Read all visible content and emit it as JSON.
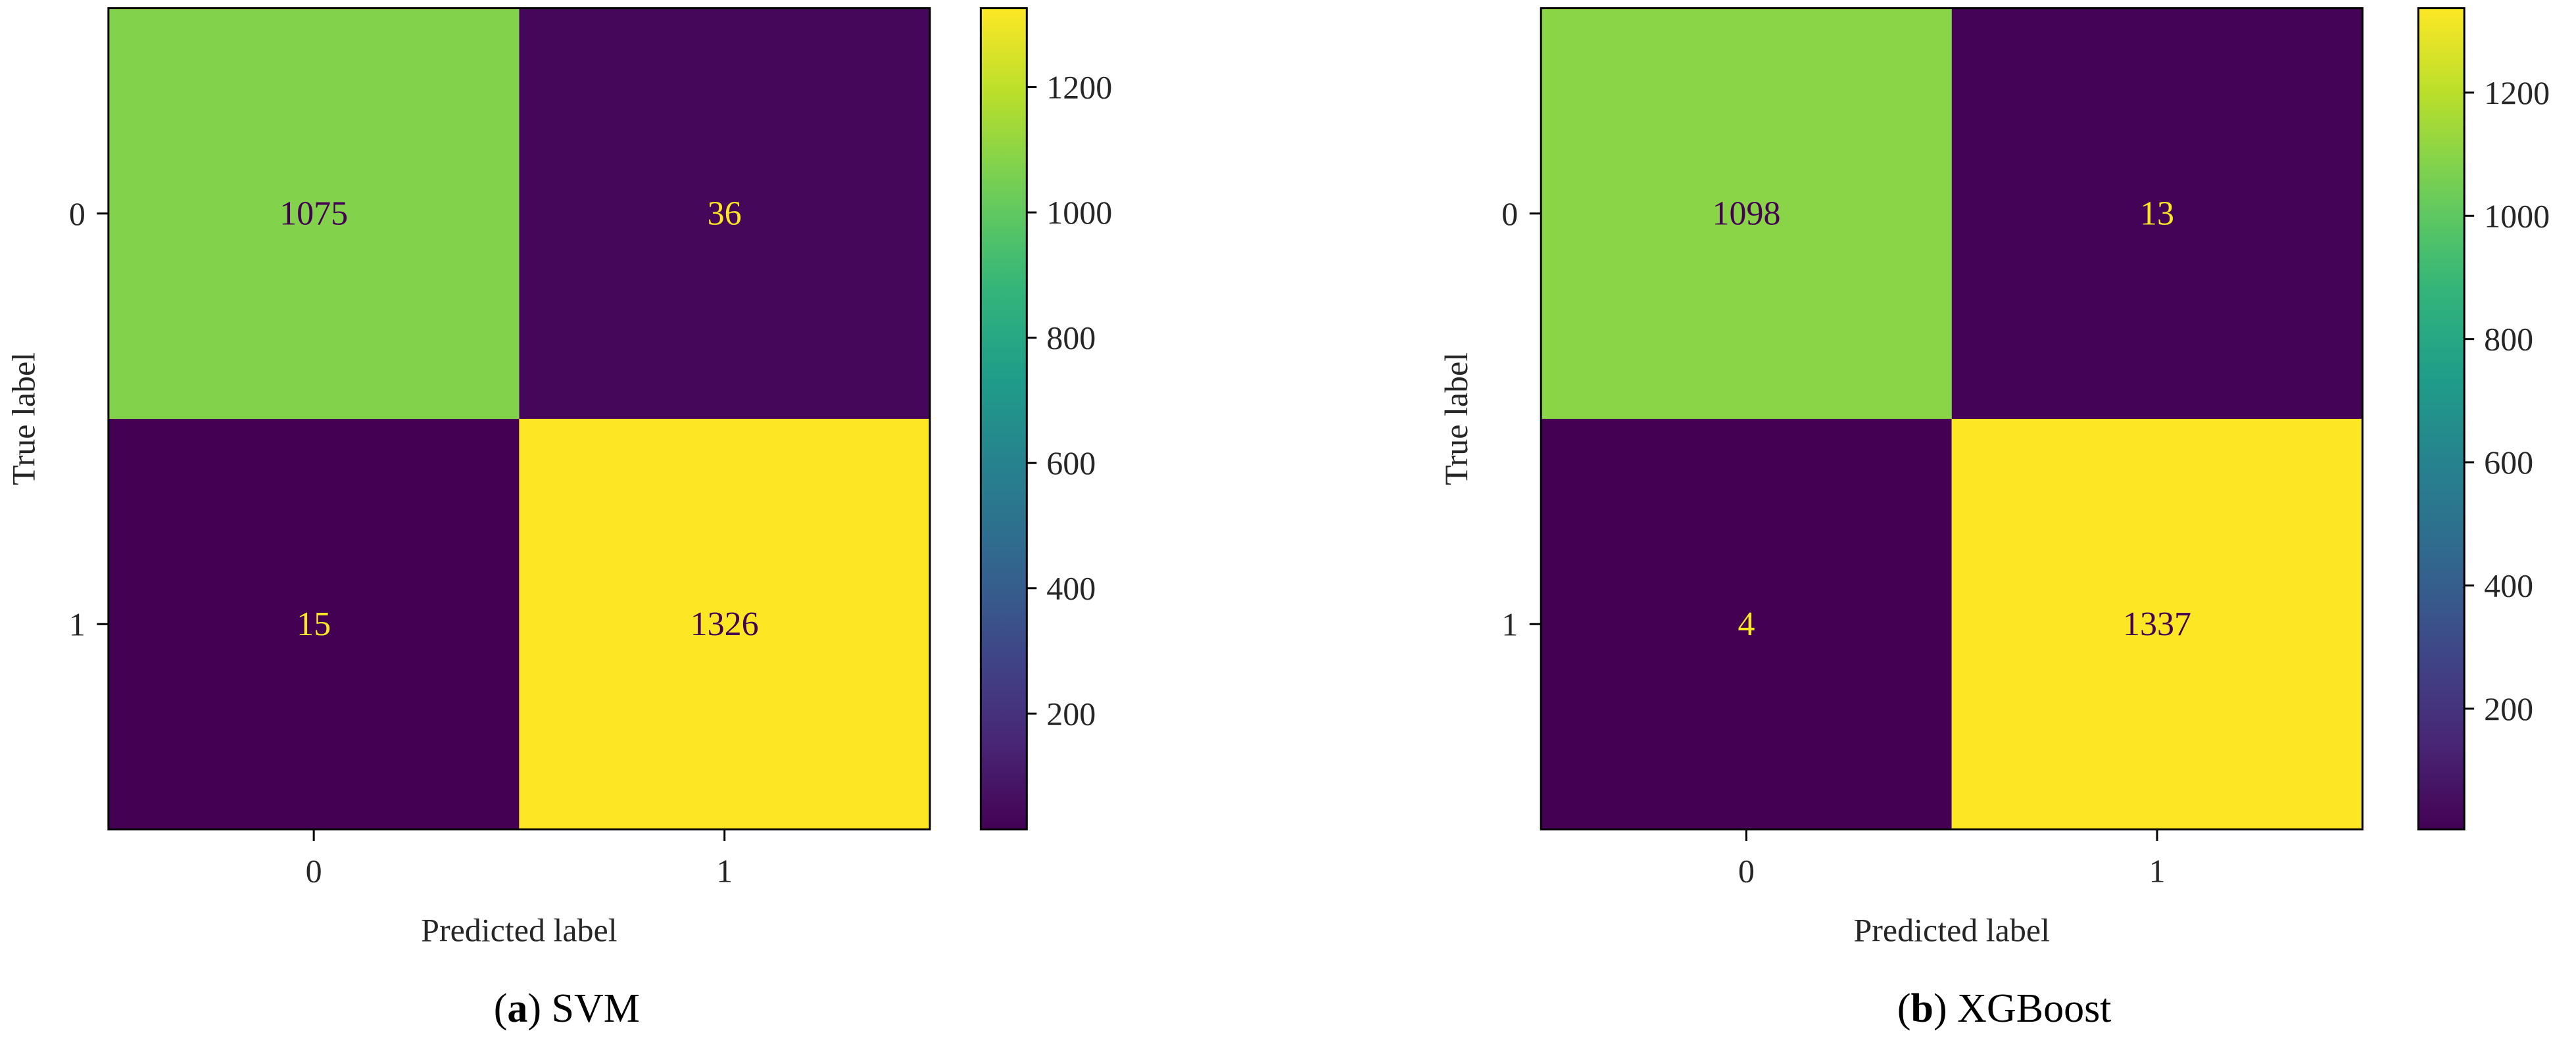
{
  "colors": {
    "viridis": [
      "#440154",
      "#482878",
      "#3e4989",
      "#31688e",
      "#26828e",
      "#1f9e89",
      "#35b779",
      "#6ece58",
      "#b5de2b",
      "#fde725"
    ],
    "text_on_dark": "#fde725",
    "text_on_light": "#440154",
    "axis": "#000000"
  },
  "chart_data": [
    {
      "type": "heatmap",
      "title": "",
      "xlabel": "Predicted label",
      "ylabel": "True label",
      "x_categories": [
        "0",
        "1"
      ],
      "y_categories": [
        "0",
        "1"
      ],
      "matrix": [
        [
          1075,
          36
        ],
        [
          15,
          1326
        ]
      ],
      "colorbar": {
        "min": 15,
        "max": 1326,
        "ticks": [
          "200",
          "400",
          "600",
          "800",
          "1000",
          "1200"
        ]
      },
      "caption": {
        "letter": "a",
        "text": "SVM"
      }
    },
    {
      "type": "heatmap",
      "title": "",
      "xlabel": "Predicted label",
      "ylabel": "True label",
      "x_categories": [
        "0",
        "1"
      ],
      "y_categories": [
        "0",
        "1"
      ],
      "matrix": [
        [
          1098,
          13
        ],
        [
          4,
          1337
        ]
      ],
      "colorbar": {
        "min": 4,
        "max": 1337,
        "ticks": [
          "200",
          "400",
          "600",
          "800",
          "1000",
          "1200"
        ]
      },
      "caption": {
        "letter": "b",
        "text": "XGBoost"
      }
    }
  ]
}
